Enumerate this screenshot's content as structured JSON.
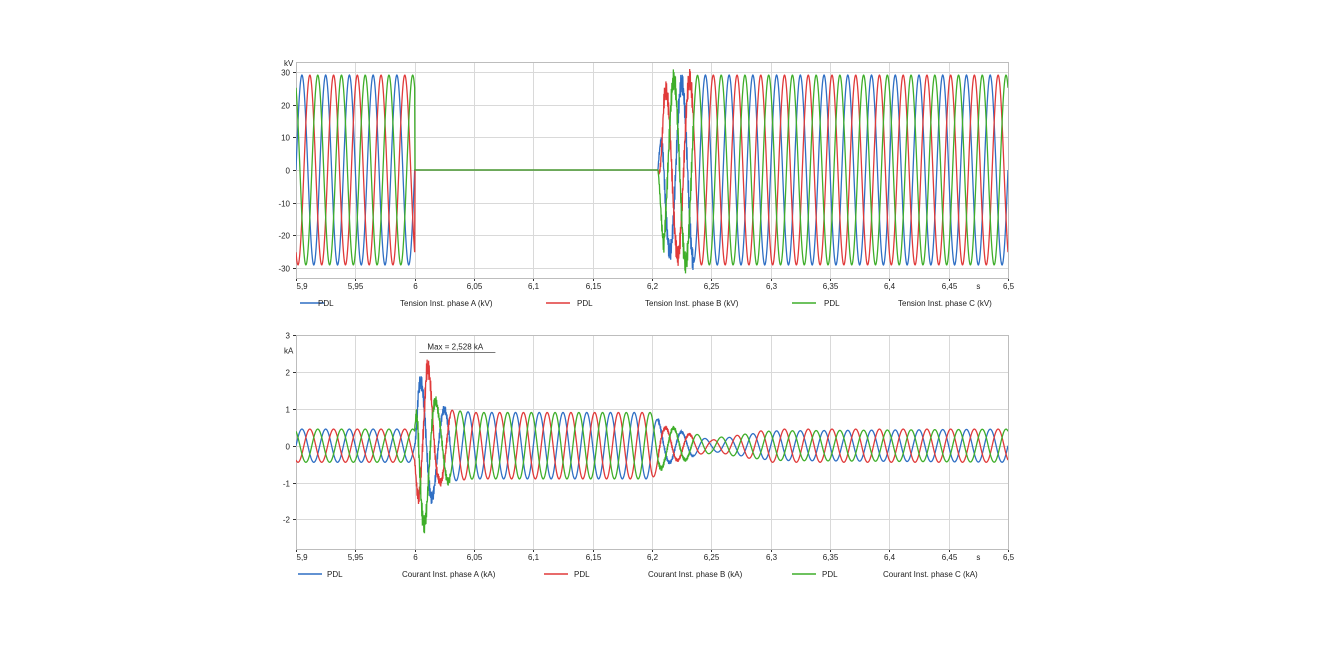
{
  "chart_data": [
    {
      "type": "line",
      "ylabel": "kV",
      "xunit": "s",
      "xlim": [
        5.9,
        6.5
      ],
      "ylim": [
        -33,
        33
      ],
      "xticks": [
        "5,9",
        "5,95",
        "6",
        "6,05",
        "6,1",
        "6,15",
        "6,2",
        "6,25",
        "6,3",
        "6,35",
        "6,4",
        "6,45",
        "6,5"
      ],
      "yticks": [
        "30",
        "20",
        "10",
        "0",
        "-10",
        "-20",
        "-30"
      ],
      "grid": true,
      "legend_position": "bottom",
      "series": [
        {
          "name": "Tension Inst. phase A (kV)",
          "source": "PDL",
          "color": "#2f6fc4",
          "phase_deg": 0,
          "envelope": [
            [
              5.9,
              29
            ],
            [
              6.0,
              29
            ],
            [
              6.0001,
              0
            ],
            [
              6.205,
              0
            ],
            [
              6.21,
              24
            ],
            [
              6.22,
              26
            ],
            [
              6.24,
              29
            ],
            [
              6.5,
              29
            ]
          ]
        },
        {
          "name": "Tension Inst. phase B (kV)",
          "source": "PDL",
          "color": "#e03a3a",
          "phase_deg": -120,
          "envelope": [
            [
              5.9,
              29
            ],
            [
              6.0,
              29
            ],
            [
              6.0001,
              0
            ],
            [
              6.205,
              0
            ],
            [
              6.21,
              24
            ],
            [
              6.22,
              26
            ],
            [
              6.24,
              29
            ],
            [
              6.5,
              29
            ]
          ]
        },
        {
          "name": "Tension Inst. phase C (kV)",
          "source": "PDL",
          "color": "#3fae2a",
          "phase_deg": 120,
          "envelope": [
            [
              5.9,
              29
            ],
            [
              6.0,
              29
            ],
            [
              6.0001,
              0
            ],
            [
              6.205,
              0
            ],
            [
              6.21,
              26
            ],
            [
              6.22,
              28
            ],
            [
              6.24,
              29
            ],
            [
              6.5,
              29
            ]
          ]
        }
      ]
    },
    {
      "type": "line",
      "ylabel": "kA",
      "xunit": "s",
      "xlim": [
        5.9,
        6.5
      ],
      "ylim": [
        -2.8,
        3
      ],
      "xticks": [
        "5,9",
        "5,95",
        "6",
        "6,05",
        "6,1",
        "6,15",
        "6,2",
        "6,25",
        "6,3",
        "6,35",
        "6,4",
        "6,45",
        "6,5"
      ],
      "yticks": [
        "3",
        "2",
        "1",
        "0",
        "-1",
        "-2"
      ],
      "grid": true,
      "legend_position": "bottom",
      "annotation": {
        "text": "Max = 2,528 kA",
        "x": 6.004,
        "y": 2.528
      },
      "series": [
        {
          "name": "Courant Inst. phase A (kA)",
          "source": "PDL",
          "color": "#2f6fc4",
          "phase_deg": 0,
          "envelope": [
            [
              5.9,
              0.45
            ],
            [
              6.0,
              0.45
            ],
            [
              6.003,
              1.7
            ],
            [
              6.01,
              1.8
            ],
            [
              6.02,
              1.0
            ],
            [
              6.05,
              0.9
            ],
            [
              6.2,
              0.9
            ],
            [
              6.21,
              0.5
            ],
            [
              6.25,
              0.15
            ],
            [
              6.3,
              0.4
            ],
            [
              6.5,
              0.45
            ]
          ]
        },
        {
          "name": "Courant Inst. phase B (kA)",
          "source": "PDL",
          "color": "#e03a3a",
          "phase_deg": -120,
          "envelope": [
            [
              5.9,
              0.45
            ],
            [
              6.0,
              0.45
            ],
            [
              6.003,
              1.6
            ],
            [
              6.01,
              2.3
            ],
            [
              6.02,
              1.0
            ],
            [
              6.05,
              0.9
            ],
            [
              6.2,
              0.9
            ],
            [
              6.21,
              0.5
            ],
            [
              6.25,
              0.15
            ],
            [
              6.3,
              0.45
            ],
            [
              6.5,
              0.45
            ]
          ]
        },
        {
          "name": "Courant Inst. phase C (kA)",
          "source": "PDL",
          "color": "#3fae2a",
          "phase_deg": 120,
          "envelope": [
            [
              5.9,
              0.45
            ],
            [
              6.0,
              0.45
            ],
            [
              6.003,
              2.528
            ],
            [
              6.01,
              2.0
            ],
            [
              6.02,
              1.0
            ],
            [
              6.05,
              0.9
            ],
            [
              6.2,
              0.9
            ],
            [
              6.21,
              0.55
            ],
            [
              6.25,
              0.2
            ],
            [
              6.3,
              0.4
            ],
            [
              6.5,
              0.45
            ]
          ]
        }
      ]
    }
  ]
}
